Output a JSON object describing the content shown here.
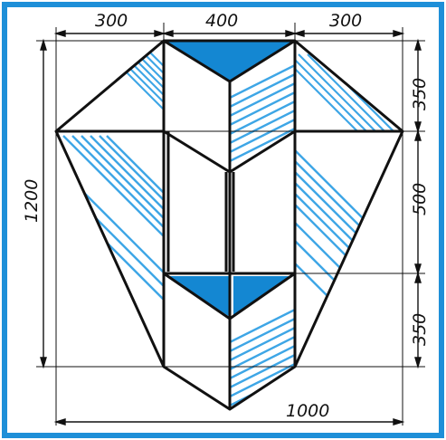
{
  "dimensions": {
    "top_left_width": "300",
    "top_center_width": "400",
    "top_right_width": "300",
    "overall_height": "1200",
    "right_top_height": "350",
    "right_middle_height": "500",
    "right_bottom_height": "350",
    "overall_width": "1000"
  },
  "colors": {
    "frame": "#1e8fd8",
    "fill": "#1487d2",
    "hatch": "#3ea6e6",
    "line": "#111111"
  }
}
